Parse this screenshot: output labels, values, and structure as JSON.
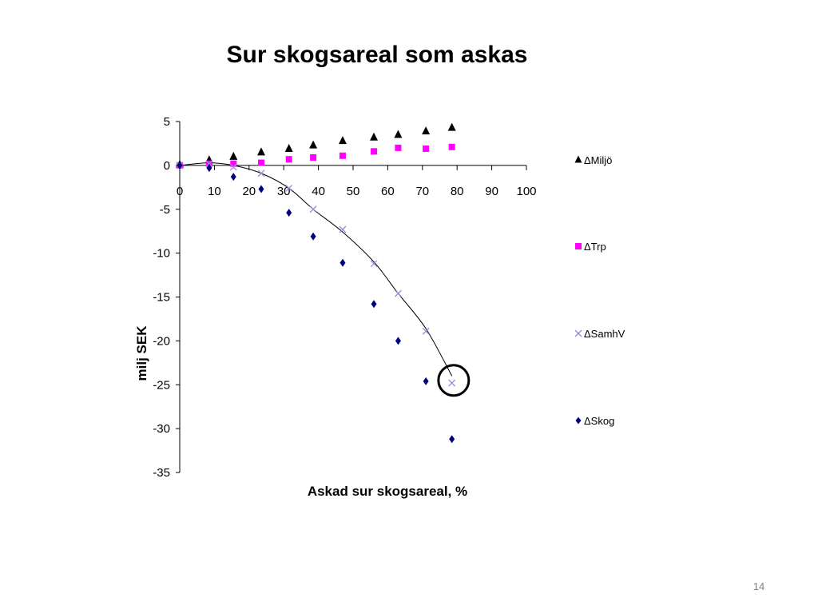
{
  "slide": {
    "title": "Sur skogsareal som askas",
    "page_number": "14"
  },
  "chart_data": {
    "type": "scatter",
    "title": "",
    "xlabel": "Askad sur skogsareal, %",
    "ylabel": "milj SEK",
    "xlim": [
      0,
      100
    ],
    "ylim": [
      -35,
      5
    ],
    "x_ticks": [
      0,
      10,
      20,
      30,
      40,
      50,
      60,
      70,
      80,
      90,
      100
    ],
    "y_ticks": [
      5,
      0,
      -5,
      -10,
      -15,
      -20,
      -25,
      -30,
      -35
    ],
    "grid": false,
    "legend_placement": "right",
    "series": [
      {
        "name": "ΔMiljö",
        "marker": "triangle",
        "color": "#000000",
        "points": [
          [
            0,
            0.1
          ],
          [
            8.5,
            0.6
          ],
          [
            15.5,
            1.0
          ],
          [
            23.5,
            1.5
          ],
          [
            31.5,
            1.9
          ],
          [
            38.5,
            2.3
          ],
          [
            47,
            2.8
          ],
          [
            56,
            3.2
          ],
          [
            63,
            3.5
          ],
          [
            71,
            3.9
          ],
          [
            78.5,
            4.3
          ]
        ]
      },
      {
        "name": "ΔTrp",
        "marker": "square",
        "color": "#ff00ff",
        "points": [
          [
            0,
            0.0
          ],
          [
            8.5,
            0.2
          ],
          [
            15.5,
            0.2
          ],
          [
            23.5,
            0.3
          ],
          [
            31.5,
            0.7
          ],
          [
            38.5,
            0.9
          ],
          [
            47,
            1.1
          ],
          [
            56,
            1.6
          ],
          [
            63,
            2.0
          ],
          [
            71,
            1.9
          ],
          [
            78.5,
            2.1
          ]
        ]
      },
      {
        "name": "ΔSamhV",
        "marker": "cross",
        "color": "#8f8fd6",
        "points": [
          [
            0,
            0.0
          ],
          [
            8.5,
            0.2
          ],
          [
            15.5,
            -0.2
          ],
          [
            23.5,
            -0.9
          ],
          [
            31.5,
            -2.6
          ],
          [
            38.5,
            -5.0
          ],
          [
            47,
            -7.3
          ],
          [
            56,
            -11.2
          ],
          [
            63,
            -14.6
          ],
          [
            71,
            -18.9
          ],
          [
            78.5,
            -24.8
          ]
        ]
      },
      {
        "name": "ΔSkog",
        "marker": "diamond",
        "color": "#000080",
        "points": [
          [
            0,
            0.0
          ],
          [
            8.5,
            -0.3
          ],
          [
            15.5,
            -1.3
          ],
          [
            23.5,
            -2.7
          ],
          [
            31.5,
            -5.4
          ],
          [
            38.5,
            -8.1
          ],
          [
            47,
            -11.1
          ],
          [
            56,
            -15.8
          ],
          [
            63,
            -20.0
          ],
          [
            71,
            -24.6
          ],
          [
            78.5,
            -31.2
          ]
        ]
      }
    ],
    "trendline": {
      "series": "ΔSamhV",
      "points": [
        [
          0,
          0.0
        ],
        [
          8.5,
          0.3
        ],
        [
          15.5,
          0.0
        ],
        [
          23.5,
          -0.9
        ],
        [
          31.5,
          -2.6
        ],
        [
          38.5,
          -5.0
        ],
        [
          47,
          -7.6
        ],
        [
          56,
          -11.0
        ],
        [
          63,
          -14.6
        ],
        [
          71,
          -18.6
        ],
        [
          78.5,
          -24.0
        ]
      ]
    },
    "highlight_circle_at": [
      79,
      -24.5
    ]
  }
}
